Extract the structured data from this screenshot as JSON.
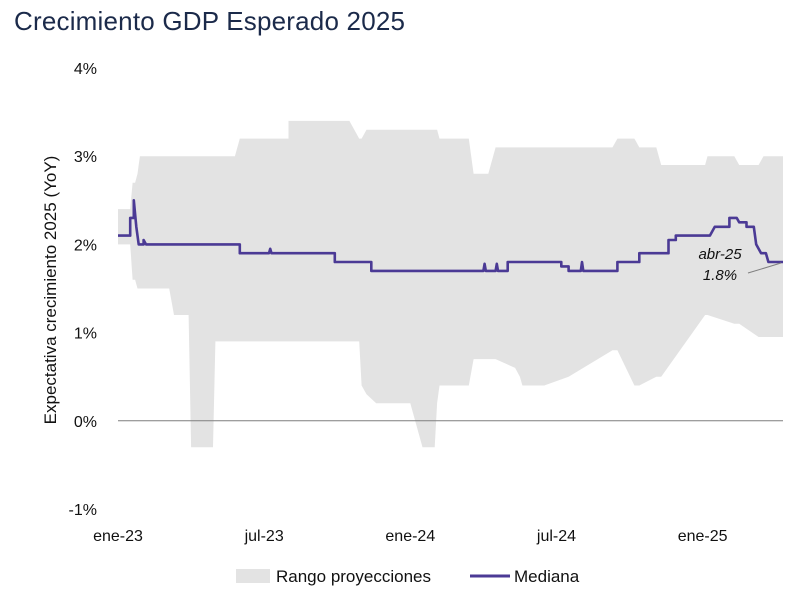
{
  "chart_data": {
    "type": "line",
    "title": "Crecimiento GDP Esperado 2025",
    "xlabel": "",
    "ylabel": "Expectativa crecimiento 2025 (YoY)",
    "ylim": [
      -1,
      4
    ],
    "xlim": [
      0,
      27.3
    ],
    "y_ticks": [
      -1,
      0,
      1,
      2,
      3,
      4
    ],
    "y_tick_labels": [
      "-1%",
      "0%",
      "1%",
      "2%",
      "3%",
      "4%"
    ],
    "x_ticks": [
      0,
      6,
      12,
      18,
      24
    ],
    "x_tick_labels": [
      "ene-23",
      "jul-23",
      "ene-24",
      "jul-24",
      "ene-25"
    ],
    "x_unit": "meses desde ene-23",
    "zero_line": true,
    "grid": false,
    "legend": {
      "position": "bottom",
      "entries": [
        "Rango proyecciones",
        "Mediana"
      ]
    },
    "colors": {
      "range": "#e3e3e3",
      "median": "#4b3a95",
      "zero_line": "#7f7f7f",
      "title": "#1b2a4a"
    },
    "series": [
      {
        "name": "Rango proyecciones",
        "kind": "band",
        "x": [
          0.0,
          0.5,
          0.6,
          0.7,
          0.8,
          0.9,
          1.1,
          2.1,
          2.3,
          2.9,
          3.0,
          3.9,
          4.0,
          4.8,
          5.0,
          6.0,
          6.0,
          7.0,
          7.0,
          9.0,
          9.5,
          9.9,
          10.0,
          10.2,
          10.6,
          11.0,
          11.3,
          11.5,
          12.0,
          12.5,
          13.0,
          13.1,
          13.2,
          14.4,
          14.6,
          15.0,
          15.2,
          15.5,
          16.3,
          16.5,
          16.6,
          16.8,
          17.3,
          17.5,
          18.5,
          20.3,
          20.5,
          21.2,
          21.4,
          22.1,
          22.3,
          24.1,
          24.2,
          25.3,
          25.5,
          26.3,
          26.5,
          27.3
        ],
        "low": [
          2.0,
          2.0,
          1.6,
          1.6,
          1.5,
          1.5,
          1.5,
          1.5,
          1.2,
          1.2,
          -0.3,
          -0.3,
          0.9,
          0.9,
          0.9,
          0.9,
          0.9,
          0.9,
          0.9,
          0.9,
          0.9,
          0.9,
          0.4,
          0.3,
          0.2,
          0.2,
          0.2,
          0.2,
          0.2,
          -0.3,
          -0.3,
          0.2,
          0.4,
          0.4,
          0.7,
          0.7,
          0.7,
          0.7,
          0.6,
          0.5,
          0.4,
          0.4,
          0.4,
          0.4,
          0.5,
          0.8,
          0.8,
          0.4,
          0.4,
          0.5,
          0.5,
          1.2,
          1.2,
          1.1,
          1.1,
          0.95,
          0.95,
          0.95
        ],
        "high": [
          2.4,
          2.4,
          2.7,
          2.7,
          2.8,
          3.0,
          3.0,
          3.0,
          3.0,
          3.0,
          3.0,
          3.0,
          3.0,
          3.0,
          3.2,
          3.2,
          3.2,
          3.2,
          3.4,
          3.4,
          3.4,
          3.2,
          3.2,
          3.3,
          3.3,
          3.3,
          3.3,
          3.3,
          3.3,
          3.3,
          3.3,
          3.3,
          3.2,
          3.2,
          2.8,
          2.8,
          2.8,
          3.1,
          3.1,
          3.1,
          3.1,
          3.1,
          3.1,
          3.1,
          3.1,
          3.1,
          3.2,
          3.2,
          3.1,
          3.1,
          2.9,
          2.9,
          3.0,
          3.0,
          2.9,
          2.9,
          3.0,
          3.0
        ]
      },
      {
        "name": "Mediana",
        "kind": "line",
        "x": [
          0.0,
          0.5,
          0.5,
          0.65,
          0.65,
          0.75,
          0.75,
          0.85,
          0.85,
          1.05,
          1.05,
          1.15,
          1.15,
          1.25,
          1.25,
          5.0,
          5.0,
          6.2,
          6.25,
          6.3,
          8.9,
          8.9,
          10.4,
          10.4,
          15.0,
          15.05,
          15.1,
          15.5,
          15.55,
          15.6,
          16.0,
          16.0,
          16.2,
          16.2,
          18.2,
          18.2,
          18.5,
          18.5,
          19.0,
          19.05,
          19.1,
          20.5,
          20.5,
          21.4,
          21.4,
          22.6,
          22.6,
          22.9,
          22.9,
          24.2,
          24.2,
          24.3,
          24.5,
          25.1,
          25.1,
          25.4,
          25.5,
          25.8,
          25.8,
          26.0,
          26.1,
          26.2,
          26.4,
          26.6,
          26.7,
          27.3
        ],
        "values": [
          2.1,
          2.1,
          2.3,
          2.3,
          2.5,
          2.2,
          2.2,
          2.0,
          2.0,
          2.0,
          2.05,
          2.0,
          2.0,
          2.0,
          2.0,
          2.0,
          1.9,
          1.9,
          1.95,
          1.9,
          1.9,
          1.8,
          1.8,
          1.7,
          1.7,
          1.78,
          1.7,
          1.7,
          1.78,
          1.7,
          1.7,
          1.8,
          1.8,
          1.8,
          1.8,
          1.75,
          1.75,
          1.7,
          1.7,
          1.8,
          1.7,
          1.7,
          1.8,
          1.8,
          1.9,
          1.9,
          2.05,
          2.05,
          2.1,
          2.1,
          2.1,
          2.1,
          2.2,
          2.2,
          2.3,
          2.3,
          2.25,
          2.25,
          2.2,
          2.2,
          2.2,
          2.0,
          1.9,
          1.9,
          1.8,
          1.8
        ]
      }
    ],
    "annotation": {
      "label": "abr-25",
      "value_label": "1.8%",
      "x": 27.3,
      "y": 1.8
    }
  }
}
